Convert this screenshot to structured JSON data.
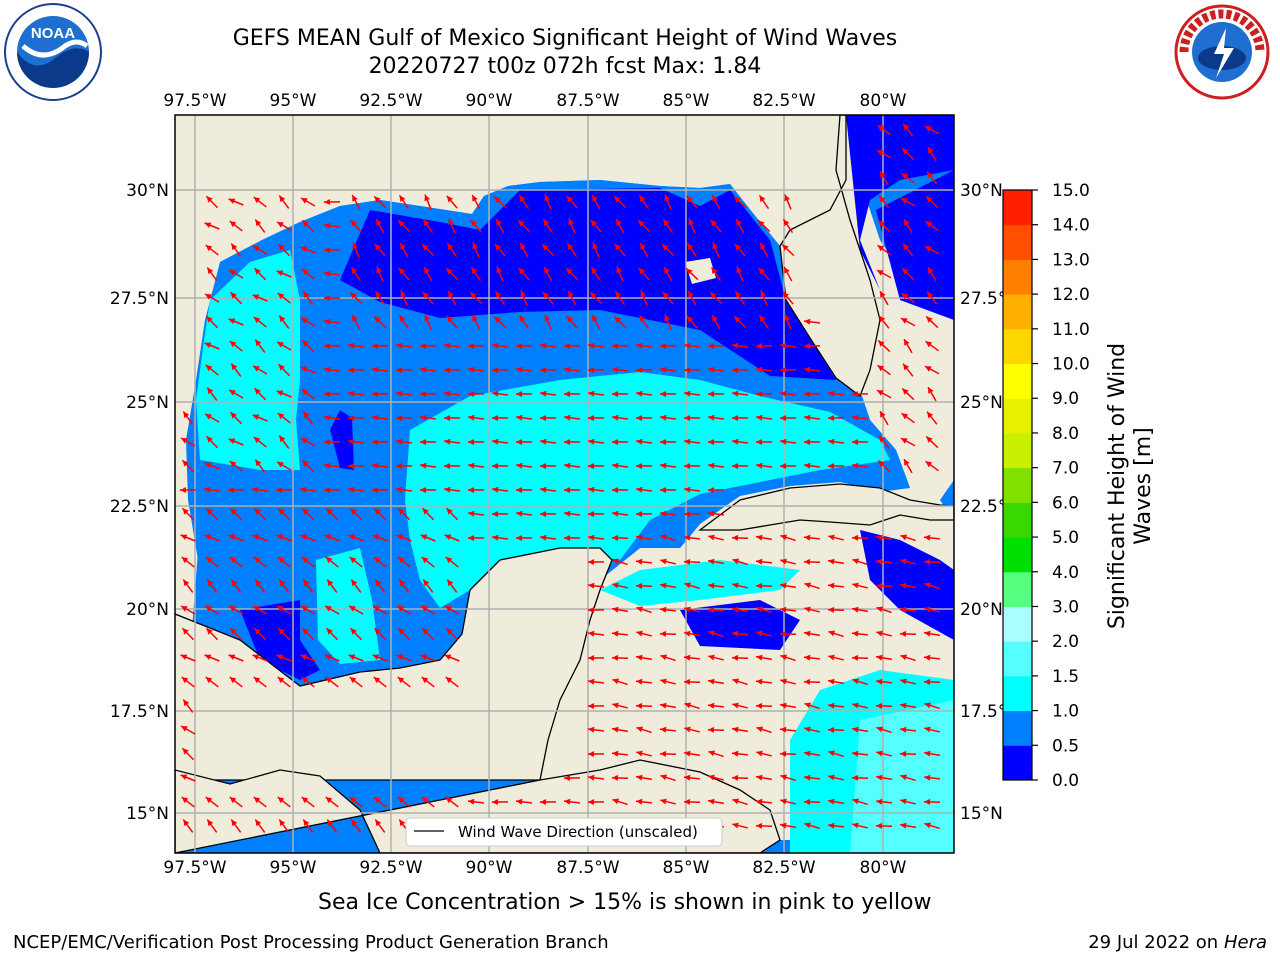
{
  "header": {
    "title_line1": "GEFS MEAN Gulf of Mexico Significant Height of Wind Waves",
    "title_line2": "20220727 t00z 072h fcst   Max: 1.84"
  },
  "logos": {
    "left": "NOAA",
    "right": "NATIONAL WEATHER SERVICE"
  },
  "map": {
    "lon_ticks": [
      "97.5°W",
      "95°W",
      "92.5°W",
      "90°W",
      "87.5°W",
      "85°W",
      "82.5°W",
      "80°W"
    ],
    "lat_ticks": [
      "15°N",
      "17.5°N",
      "20°N",
      "22.5°N",
      "25°N",
      "27.5°N",
      "30°N"
    ],
    "right_lat_ticks": [
      "15°N",
      "17.5°",
      "20°N",
      "22.5°",
      "25°N",
      "27.5°",
      "30°N"
    ],
    "legend_text": "Wind Wave Direction (unscaled)",
    "arrow_color": "#ff0000",
    "land_color": "#efecdc",
    "grid_color": "#b0b0b0",
    "max_value": 1.84
  },
  "colorbar": {
    "label_line1": "Significant Height of Wind",
    "label_line2": "Waves [m]",
    "ticks": [
      "0.0",
      "0.5",
      "1.0",
      "1.5",
      "2.0",
      "3.0",
      "4.0",
      "5.0",
      "6.0",
      "7.0",
      "8.0",
      "9.0",
      "10.0",
      "11.0",
      "12.0",
      "13.0",
      "14.0",
      "15.0"
    ],
    "colors": [
      "#0000ff",
      "#0080ff",
      "#00ffff",
      "#55ffff",
      "#aaffff",
      "#55ff80",
      "#00e000",
      "#38d800",
      "#80e000",
      "#c8f000",
      "#e8f000",
      "#ffff00",
      "#ffd700",
      "#ffb000",
      "#ff8000",
      "#ff5000",
      "#ff2000"
    ]
  },
  "captions": {
    "ice": "Sea Ice Concentration > 15% is shown in pink to yellow",
    "footer_left": "NCEP/EMC/Verification Post Processing Product Generation Branch",
    "footer_date": "29 Jul 2022 on ",
    "footer_machine": "Hera"
  }
}
